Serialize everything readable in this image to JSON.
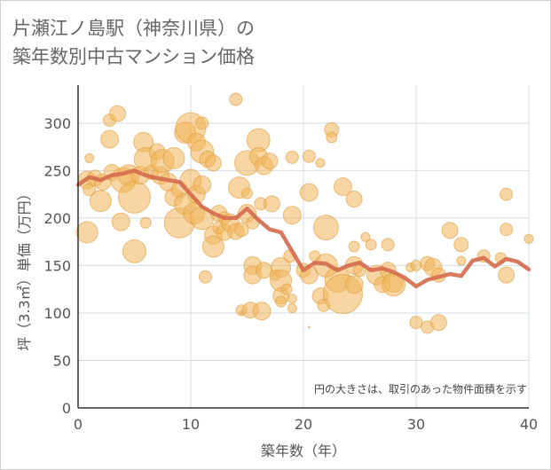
{
  "title": "片瀬江ノ島駅（神奈川県）の\n築年数別中古マンション価格",
  "chart_data": {
    "type": "scatter",
    "xlabel": "築年数（年）",
    "ylabel": "坪（3.3㎡）単価（万円）",
    "xlim": [
      0,
      40
    ],
    "ylim": [
      0,
      340
    ],
    "xticks": [
      "0",
      "10",
      "20",
      "30",
      "40"
    ],
    "yticks": [
      "0",
      "50",
      "100",
      "150",
      "200",
      "250",
      "300"
    ],
    "xtick_values": [
      0,
      10,
      20,
      30,
      40
    ],
    "ytick_values": [
      0,
      50,
      100,
      150,
      200,
      250,
      300
    ],
    "grid": true,
    "note": "円の大きさは、取引のあった物件面積を示す",
    "bubble_color": "#f0b458",
    "line_color": "#d46a4c",
    "bubbles": [
      {
        "x": 0.8,
        "y": 240,
        "s": 10
      },
      {
        "x": 0.8,
        "y": 185,
        "s": 12
      },
      {
        "x": 1.0,
        "y": 230,
        "s": 7
      },
      {
        "x": 1.0,
        "y": 263,
        "s": 5
      },
      {
        "x": 1.5,
        "y": 242,
        "s": 9
      },
      {
        "x": 2.0,
        "y": 218,
        "s": 12
      },
      {
        "x": 2.2,
        "y": 238,
        "s": 9
      },
      {
        "x": 2.8,
        "y": 283,
        "s": 10
      },
      {
        "x": 2.8,
        "y": 303,
        "s": 7
      },
      {
        "x": 3.0,
        "y": 248,
        "s": 9
      },
      {
        "x": 3.5,
        "y": 310,
        "s": 9
      },
      {
        "x": 3.8,
        "y": 196,
        "s": 10
      },
      {
        "x": 4.0,
        "y": 240,
        "s": 14
      },
      {
        "x": 4.5,
        "y": 245,
        "s": 12
      },
      {
        "x": 5.0,
        "y": 165,
        "s": 13
      },
      {
        "x": 5.0,
        "y": 222,
        "s": 18
      },
      {
        "x": 5.5,
        "y": 245,
        "s": 10
      },
      {
        "x": 5.8,
        "y": 280,
        "s": 11
      },
      {
        "x": 6.0,
        "y": 262,
        "s": 13
      },
      {
        "x": 6.0,
        "y": 195,
        "s": 6
      },
      {
        "x": 6.5,
        "y": 248,
        "s": 8
      },
      {
        "x": 7.0,
        "y": 270,
        "s": 9
      },
      {
        "x": 7.3,
        "y": 245,
        "s": 10
      },
      {
        "x": 7.5,
        "y": 260,
        "s": 13
      },
      {
        "x": 8.0,
        "y": 238,
        "s": 10
      },
      {
        "x": 8.5,
        "y": 263,
        "s": 12
      },
      {
        "x": 8.5,
        "y": 222,
        "s": 10
      },
      {
        "x": 9.0,
        "y": 230,
        "s": 9
      },
      {
        "x": 9.0,
        "y": 195,
        "s": 17
      },
      {
        "x": 9.5,
        "y": 290,
        "s": 12
      },
      {
        "x": 9.5,
        "y": 215,
        "s": 12
      },
      {
        "x": 10.0,
        "y": 295,
        "s": 17
      },
      {
        "x": 10.0,
        "y": 240,
        "s": 12
      },
      {
        "x": 10.3,
        "y": 205,
        "s": 12
      },
      {
        "x": 10.5,
        "y": 280,
        "s": 10
      },
      {
        "x": 10.5,
        "y": 225,
        "s": 10
      },
      {
        "x": 11.0,
        "y": 300,
        "s": 7
      },
      {
        "x": 11.0,
        "y": 270,
        "s": 13
      },
      {
        "x": 11.0,
        "y": 235,
        "s": 10
      },
      {
        "x": 11.0,
        "y": 200,
        "s": 13
      },
      {
        "x": 11.3,
        "y": 138,
        "s": 7
      },
      {
        "x": 11.5,
        "y": 262,
        "s": 9
      },
      {
        "x": 12.0,
        "y": 258,
        "s": 9
      },
      {
        "x": 12.0,
        "y": 182,
        "s": 10
      },
      {
        "x": 12.0,
        "y": 170,
        "s": 12
      },
      {
        "x": 12.5,
        "y": 205,
        "s": 9
      },
      {
        "x": 12.5,
        "y": 190,
        "s": 7
      },
      {
        "x": 13.0,
        "y": 185,
        "s": 9
      },
      {
        "x": 13.0,
        "y": 200,
        "s": 7
      },
      {
        "x": 13.5,
        "y": 195,
        "s": 10
      },
      {
        "x": 14.0,
        "y": 186,
        "s": 9
      },
      {
        "x": 14.0,
        "y": 325,
        "s": 7
      },
      {
        "x": 14.3,
        "y": 232,
        "s": 12
      },
      {
        "x": 14.5,
        "y": 188,
        "s": 8
      },
      {
        "x": 14.5,
        "y": 103,
        "s": 6
      },
      {
        "x": 14.5,
        "y": 100,
        "s": 2
      },
      {
        "x": 15.0,
        "y": 258,
        "s": 14
      },
      {
        "x": 15.0,
        "y": 205,
        "s": 10
      },
      {
        "x": 15.0,
        "y": 226,
        "s": 6
      },
      {
        "x": 15.3,
        "y": 103,
        "s": 9
      },
      {
        "x": 15.5,
        "y": 150,
        "s": 10
      },
      {
        "x": 15.5,
        "y": 140,
        "s": 10
      },
      {
        "x": 15.5,
        "y": 195,
        "s": 7
      },
      {
        "x": 16.0,
        "y": 282,
        "s": 13
      },
      {
        "x": 16.0,
        "y": 265,
        "s": 10
      },
      {
        "x": 16.2,
        "y": 215,
        "s": 7
      },
      {
        "x": 16.3,
        "y": 102,
        "s": 10
      },
      {
        "x": 16.5,
        "y": 255,
        "s": 10
      },
      {
        "x": 16.5,
        "y": 145,
        "s": 9
      },
      {
        "x": 17.0,
        "y": 260,
        "s": 9
      },
      {
        "x": 17.2,
        "y": 215,
        "s": 9
      },
      {
        "x": 17.5,
        "y": 140,
        "s": 6
      },
      {
        "x": 18.0,
        "y": 148,
        "s": 11
      },
      {
        "x": 18.0,
        "y": 134,
        "s": 12
      },
      {
        "x": 18.0,
        "y": 118,
        "s": 9
      },
      {
        "x": 18.0,
        "y": 112,
        "s": 6
      },
      {
        "x": 18.5,
        "y": 125,
        "s": 6
      },
      {
        "x": 18.8,
        "y": 160,
        "s": 7
      },
      {
        "x": 19.0,
        "y": 203,
        "s": 10
      },
      {
        "x": 19.0,
        "y": 264,
        "s": 7
      },
      {
        "x": 19.0,
        "y": 115,
        "s": 5
      },
      {
        "x": 19.0,
        "y": 105,
        "s": 5
      },
      {
        "x": 20.0,
        "y": 145,
        "s": 8
      },
      {
        "x": 20.5,
        "y": 140,
        "s": 10
      },
      {
        "x": 20.5,
        "y": 227,
        "s": 10
      },
      {
        "x": 20.5,
        "y": 85,
        "s": 1
      },
      {
        "x": 20.5,
        "y": 265,
        "s": 7
      },
      {
        "x": 21.0,
        "y": 160,
        "s": 6
      },
      {
        "x": 21.5,
        "y": 258,
        "s": 5
      },
      {
        "x": 21.5,
        "y": 118,
        "s": 9
      },
      {
        "x": 21.8,
        "y": 108,
        "s": 7
      },
      {
        "x": 22.0,
        "y": 190,
        "s": 14
      },
      {
        "x": 22.0,
        "y": 150,
        "s": 13
      },
      {
        "x": 22.5,
        "y": 293,
        "s": 8
      },
      {
        "x": 22.5,
        "y": 285,
        "s": 6
      },
      {
        "x": 23.0,
        "y": 135,
        "s": 14
      },
      {
        "x": 23.5,
        "y": 120,
        "s": 22
      },
      {
        "x": 23.5,
        "y": 233,
        "s": 10
      },
      {
        "x": 24.5,
        "y": 150,
        "s": 10
      },
      {
        "x": 24.5,
        "y": 130,
        "s": 10
      },
      {
        "x": 24.5,
        "y": 220,
        "s": 9
      },
      {
        "x": 24.5,
        "y": 170,
        "s": 6
      },
      {
        "x": 25.0,
        "y": 145,
        "s": 7
      },
      {
        "x": 25.5,
        "y": 180,
        "s": 5
      },
      {
        "x": 26.0,
        "y": 172,
        "s": 6
      },
      {
        "x": 26.5,
        "y": 140,
        "s": 11
      },
      {
        "x": 27.0,
        "y": 130,
        "s": 9
      },
      {
        "x": 27.5,
        "y": 145,
        "s": 9
      },
      {
        "x": 27.5,
        "y": 172,
        "s": 7
      },
      {
        "x": 28.0,
        "y": 132,
        "s": 11
      },
      {
        "x": 28.0,
        "y": 130,
        "s": 13
      },
      {
        "x": 29.5,
        "y": 148,
        "s": 5
      },
      {
        "x": 30.0,
        "y": 90,
        "s": 7
      },
      {
        "x": 30.0,
        "y": 150,
        "s": 6
      },
      {
        "x": 31.0,
        "y": 85,
        "s": 7
      },
      {
        "x": 31.0,
        "y": 152,
        "s": 8
      },
      {
        "x": 31.5,
        "y": 148,
        "s": 10
      },
      {
        "x": 32.0,
        "y": 90,
        "s": 9
      },
      {
        "x": 32.0,
        "y": 140,
        "s": 8
      },
      {
        "x": 33.0,
        "y": 187,
        "s": 9
      },
      {
        "x": 34.0,
        "y": 155,
        "s": 5
      },
      {
        "x": 34.0,
        "y": 172,
        "s": 8
      },
      {
        "x": 36.0,
        "y": 160,
        "s": 7
      },
      {
        "x": 37.5,
        "y": 158,
        "s": 6
      },
      {
        "x": 38.0,
        "y": 225,
        "s": 7
      },
      {
        "x": 38.0,
        "y": 188,
        "s": 7
      },
      {
        "x": 38.0,
        "y": 140,
        "s": 9
      },
      {
        "x": 40.0,
        "y": 178,
        "s": 5
      }
    ],
    "series": [
      {
        "x": [
          0,
          1,
          2,
          3,
          4,
          5,
          6,
          7,
          8,
          9,
          10,
          11,
          12,
          13,
          14,
          15,
          16,
          17,
          18,
          19,
          20,
          21,
          22,
          23,
          24,
          25,
          26,
          27,
          28,
          29,
          30,
          31,
          32,
          33,
          34,
          35,
          36,
          37,
          38,
          39,
          40
        ],
        "values": [
          235,
          243,
          240,
          245,
          247,
          250,
          245,
          242,
          240,
          238,
          225,
          212,
          205,
          200,
          200,
          210,
          198,
          188,
          185,
          165,
          145,
          153,
          152,
          145,
          150,
          153,
          145,
          147,
          143,
          137,
          128,
          135,
          138,
          141,
          139,
          155,
          158,
          149,
          157,
          154,
          146
        ]
      }
    ]
  }
}
